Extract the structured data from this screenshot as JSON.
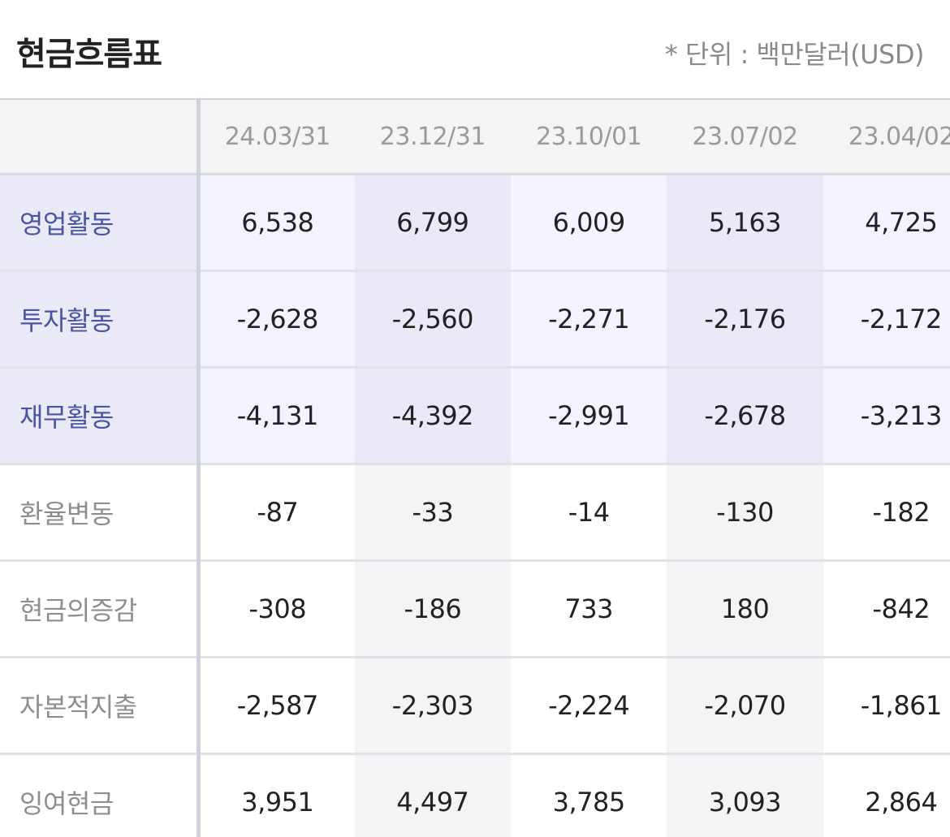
{
  "header": {
    "title": "현금흐름표",
    "unit": "* 단위 : 백만달러(USD)"
  },
  "table": {
    "columns": [
      "24.03/31",
      "23.12/31",
      "23.10/01",
      "23.07/02",
      "23.04/02"
    ],
    "rows": [
      {
        "label": "영업활동",
        "highlight": true,
        "values": [
          "6,538",
          "6,799",
          "6,009",
          "5,163",
          "4,725"
        ]
      },
      {
        "label": "투자활동",
        "highlight": true,
        "values": [
          "-2,628",
          "-2,560",
          "-2,271",
          "-2,176",
          "-2,172"
        ]
      },
      {
        "label": "재무활동",
        "highlight": true,
        "values": [
          "-4,131",
          "-4,392",
          "-2,991",
          "-2,678",
          "-3,213"
        ]
      },
      {
        "label": "환율변동",
        "highlight": false,
        "values": [
          "-87",
          "-33",
          "-14",
          "-130",
          "-182"
        ]
      },
      {
        "label": "현금의증감",
        "highlight": false,
        "values": [
          "-308",
          "-186",
          "733",
          "180",
          "-842"
        ]
      },
      {
        "label": "자본적지출",
        "highlight": false,
        "values": [
          "-2,587",
          "-2,303",
          "-2,224",
          "-2,070",
          "-1,861"
        ]
      },
      {
        "label": "잉여현금",
        "highlight": false,
        "values": [
          "3,951",
          "4,497",
          "3,785",
          "3,093",
          "2,864"
        ]
      }
    ]
  },
  "colors": {
    "highlight_label_text": "#4a54a0",
    "highlight_row_bg": "#e9eaf6",
    "normal_label_text": "#8e8e8e",
    "header_text": "#9a9a9a"
  }
}
